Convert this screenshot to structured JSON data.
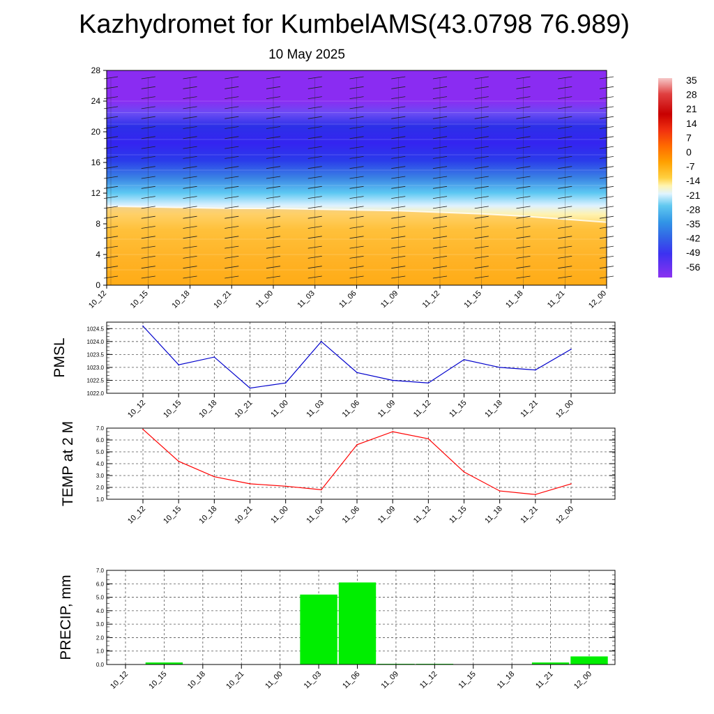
{
  "title": "Kazhydromet for KumbelAMS(43.0798 76.989)",
  "subtitle": "10 May 2025",
  "time_labels": [
    "10_12",
    "10_15",
    "10_18",
    "10_21",
    "11_00",
    "11_03",
    "11_06",
    "11_09",
    "11_12",
    "11_15",
    "11_18",
    "11_21",
    "12_00"
  ],
  "colorbar": {
    "labels": [
      "35",
      "28",
      "21",
      "14",
      "7",
      "0",
      "-7",
      "-14",
      "-21",
      "-28",
      "-35",
      "-42",
      "-49",
      "-56"
    ],
    "colors": [
      "#f2b3b3",
      "#e04040",
      "#c80000",
      "#e62020",
      "#ff5a00",
      "#ff9600",
      "#ffc800",
      "#fff0a0",
      "#d6f0ff",
      "#50c8f0",
      "#3296e6",
      "#3264e6",
      "#3c32f0",
      "#8c32f0"
    ]
  },
  "chart_data": [
    {
      "type": "heatmap",
      "name": "vertical-profile",
      "y_ticks": [
        "0",
        "4",
        "8",
        "12",
        "16",
        "20",
        "24",
        "28"
      ],
      "ylim": [
        0,
        28
      ],
      "x": [
        "10_12",
        "10_15",
        "10_18",
        "10_21",
        "11_00",
        "11_03",
        "11_06",
        "11_09",
        "11_12",
        "11_15",
        "11_18",
        "11_21",
        "12_00"
      ],
      "freezing_level": [
        10.3,
        10.2,
        10.1,
        10.0,
        10.0,
        9.9,
        9.8,
        9.7,
        9.5,
        9.3,
        9.0,
        8.6,
        8.2
      ],
      "description_colors": {
        "low_warm": "#ffa600",
        "mid_cold": "#4a9ce8",
        "upper_cold": "#3b2cf0",
        "top": "#8a2cf2"
      }
    },
    {
      "type": "line",
      "ylabel": "PMSL",
      "x": [
        "10_12",
        "10_15",
        "10_18",
        "10_21",
        "11_00",
        "11_03",
        "11_06",
        "11_09",
        "11_12",
        "11_15",
        "11_18",
        "11_21",
        "12_00"
      ],
      "values": [
        1024.6,
        1023.1,
        1023.4,
        1022.2,
        1022.4,
        1024.0,
        1022.8,
        1022.5,
        1022.4,
        1023.3,
        1023.0,
        1022.9,
        1023.7
      ],
      "ylim": [
        1022.0,
        1024.75
      ],
      "y_ticks": [
        "1022.0",
        "1022.5",
        "1023.0",
        "1023.5",
        "1024.0",
        "1024.5"
      ],
      "color": "#0000cc",
      "grid": true
    },
    {
      "type": "line",
      "ylabel": "TEMP at 2 M",
      "x": [
        "10_12",
        "10_15",
        "10_18",
        "10_21",
        "11_00",
        "11_03",
        "11_06",
        "11_09",
        "11_12",
        "11_15",
        "11_18",
        "11_21",
        "12_00"
      ],
      "values": [
        6.9,
        4.2,
        2.9,
        2.3,
        2.1,
        1.8,
        5.6,
        6.7,
        6.1,
        3.3,
        1.7,
        1.4,
        2.3
      ],
      "ylim": [
        1.0,
        7.0
      ],
      "y_ticks": [
        "1.0",
        "2.0",
        "3.0",
        "4.0",
        "5.0",
        "6.0",
        "7.0"
      ],
      "color": "#ff0000",
      "grid": true
    },
    {
      "type": "bar",
      "ylabel": "PRECIP, mm",
      "categories": [
        "10_12",
        "10_15",
        "10_18",
        "10_21",
        "11_00",
        "11_03",
        "11_06",
        "11_09",
        "11_12",
        "11_15",
        "11_18",
        "11_21",
        "12_00"
      ],
      "values": [
        0,
        0.15,
        0,
        0,
        0.02,
        5.2,
        6.1,
        0.05,
        0.05,
        0,
        0,
        0.15,
        0.6
      ],
      "ylim": [
        0,
        7.0
      ],
      "y_ticks": [
        "0.0",
        "1.0",
        "2.0",
        "3.0",
        "4.0",
        "5.0",
        "6.0",
        "7.0"
      ],
      "color": "#00ee00",
      "grid": true
    }
  ]
}
